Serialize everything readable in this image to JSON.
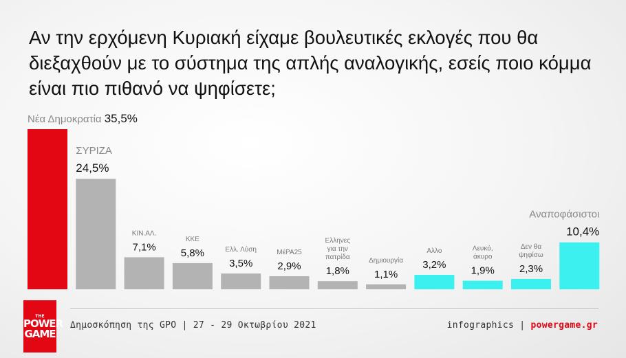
{
  "question": "Αν την ερχόμενη Κυριακή είχαμε βουλευτικές εκλογές που θα διεξαχθούν με το σύστημα της απλής αναλογικής, εσείς ποιο κόμμα είναι πιο πιθανό να ψηφίσετε;",
  "chart_data": {
    "type": "bar",
    "title": "Αν την ερχόμενη Κυριακή είχαμε βουλευτικές εκλογές που θα διεξαχθούν με το σύστημα της απλής αναλογικής, εσείς ποιο κόμμα είναι πιο πιθανό να ψηφίσετε;",
    "categories": [
      "Νέα Δημοκρατία",
      "ΣΥΡΙΖΑ",
      "ΚΙΝ.ΑΛ.",
      "ΚΚΕ",
      "Ελλ. Λύση",
      "ΜέΡΑ25",
      "Ελληνες για την πατρίδα",
      "Δημιουργία",
      "Αλλο",
      "Λευκό, άκυρο",
      "Δεν θα ψηφίσω",
      "Αναποφάσιστοι"
    ],
    "label_lines": [
      [
        "Νέα Δημοκρατία"
      ],
      [
        "ΣΥΡΙΖΑ"
      ],
      [
        "ΚΙΝ.ΑΛ."
      ],
      [
        "ΚΚΕ"
      ],
      [
        "Ελλ. Λύση"
      ],
      [
        "ΜέΡΑ25"
      ],
      [
        "Ελληνες",
        "για την",
        "πατρίδα"
      ],
      [
        "Δημιουργία"
      ],
      [
        "Αλλο"
      ],
      [
        "Λευκό,",
        "άκυρο"
      ],
      [
        "Δεν θα",
        "ψηφίσω"
      ],
      [
        "Αναποφάσιστοι"
      ]
    ],
    "values": [
      35.5,
      24.5,
      7.1,
      5.8,
      3.5,
      2.9,
      1.8,
      1.1,
      3.2,
      1.9,
      2.3,
      10.4
    ],
    "value_labels": [
      "35,5%",
      "24,5%",
      "7,1%",
      "5,8%",
      "3,5%",
      "2,9%",
      "1,8%",
      "1,1%",
      "3,2%",
      "1,9%",
      "2,3%",
      "10,4%"
    ],
    "label_style": [
      "big",
      "big",
      "small",
      "small",
      "small",
      "small",
      "small",
      "small",
      "small",
      "small",
      "small",
      "big"
    ],
    "colors": [
      "#e30613",
      "#b3b3b3",
      "#b3b3b3",
      "#b3b3b3",
      "#b3b3b3",
      "#b3b3b3",
      "#b3b3b3",
      "#b3b3b3",
      "#3df0f0",
      "#3df0f0",
      "#3df0f0",
      "#3df0f0"
    ],
    "ylim": [
      0,
      35.5
    ],
    "grid": false,
    "legend": "none"
  },
  "footer": {
    "source": "Δημοσκόπηση της GPO | 27 - 29 Οκτωβρίου 2021",
    "credit_prefix": "infographics | ",
    "credit_brand": "powergame.gr"
  },
  "logo": {
    "the": "THE",
    "line1": "POWER",
    "line2": "GAME"
  }
}
